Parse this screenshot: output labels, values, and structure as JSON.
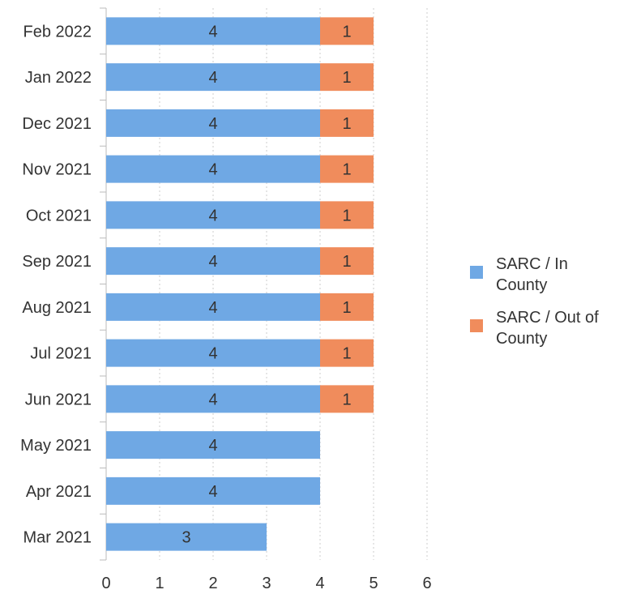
{
  "chart_data": {
    "type": "bar",
    "orientation": "horizontal",
    "stacked": true,
    "categories": [
      "Feb 2022",
      "Jan 2022",
      "Dec 2021",
      "Nov 2021",
      "Oct 2021",
      "Sep 2021",
      "Aug 2021",
      "Jul 2021",
      "Jun 2021",
      "May 2021",
      "Apr 2021",
      "Mar 2021"
    ],
    "series": [
      {
        "name": "SARC / In County",
        "color": "#6fa8e4",
        "values": [
          4,
          4,
          4,
          4,
          4,
          4,
          4,
          4,
          4,
          4,
          4,
          3
        ]
      },
      {
        "name": "SARC / Out of County",
        "color": "#f08c5c",
        "values": [
          1,
          1,
          1,
          1,
          1,
          1,
          1,
          1,
          1,
          0,
          0,
          0
        ]
      }
    ],
    "xlim": [
      0,
      6
    ],
    "xticks": [
      0,
      1,
      2,
      3,
      4,
      5,
      6
    ],
    "grid": "vertical dotted",
    "legend_position": "right",
    "data_labels": true
  },
  "legend": {
    "items": [
      {
        "label_line1": "SARC / In",
        "label_line2": "County",
        "color": "#6fa8e4"
      },
      {
        "label_line1": "SARC / Out of",
        "label_line2": "County",
        "color": "#f08c5c"
      }
    ]
  }
}
